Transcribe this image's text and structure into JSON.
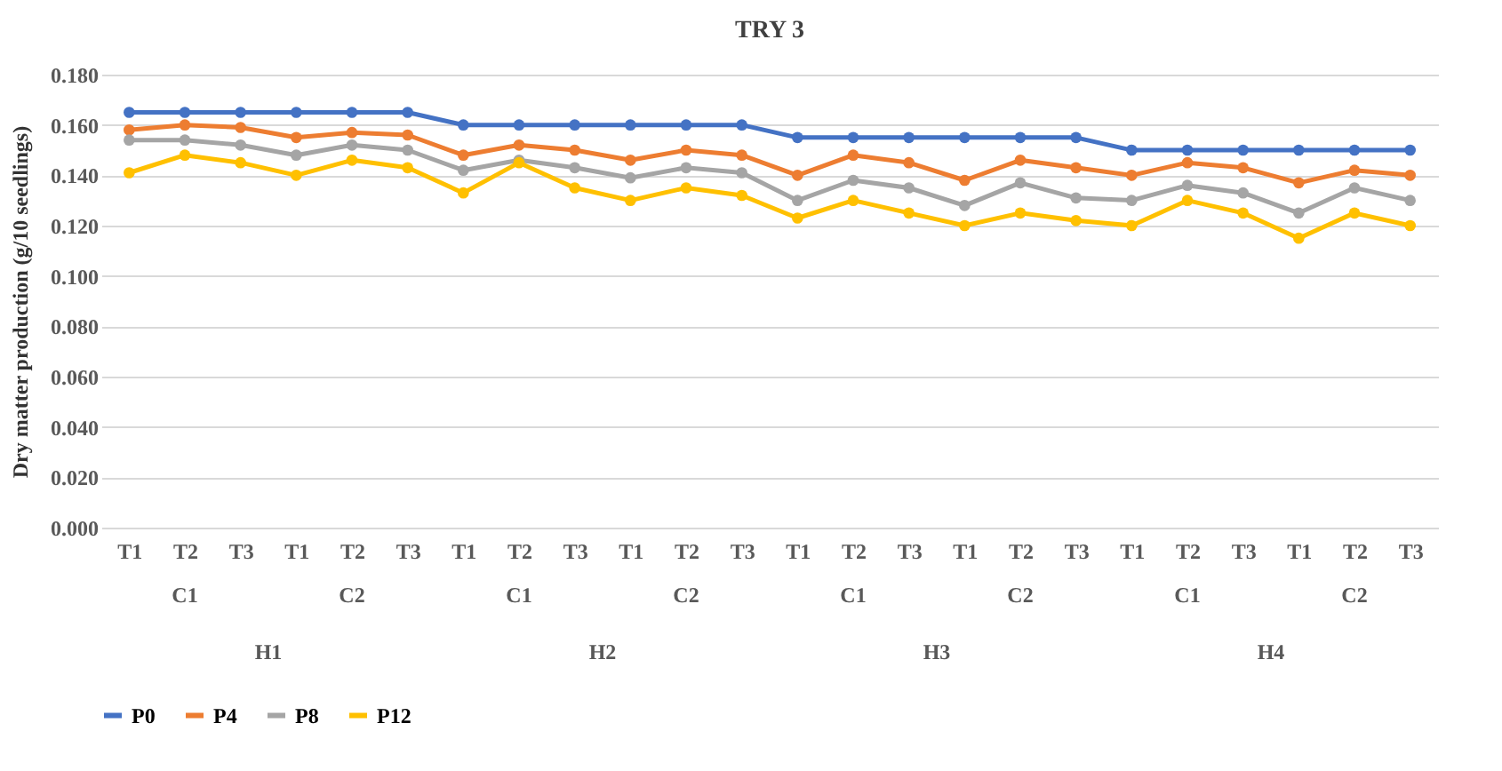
{
  "chart_data": {
    "type": "line",
    "title": "TRY 3",
    "ylabel": "Dry matter production (g/10 seedlings)",
    "categories": [
      "T1",
      "T2",
      "T3",
      "T1",
      "T2",
      "T3",
      "T1",
      "T2",
      "T3",
      "T1",
      "T2",
      "T3",
      "T1",
      "T2",
      "T3",
      "T1",
      "T2",
      "T3",
      "T1",
      "T2",
      "T3",
      "T1",
      "T2",
      "T3"
    ],
    "annotations": [
      "C1",
      "C2",
      "C1",
      "C2",
      "C1",
      "C2",
      "C1",
      "C2",
      "H1",
      "H2",
      "H3",
      "H4"
    ],
    "series": [
      {
        "name": "P0",
        "color": "#4472c4",
        "values": [
          0.165,
          0.165,
          0.165,
          0.165,
          0.165,
          0.165,
          0.16,
          0.16,
          0.16,
          0.16,
          0.16,
          0.16,
          0.155,
          0.155,
          0.155,
          0.155,
          0.155,
          0.155,
          0.15,
          0.15,
          0.15,
          0.15,
          0.15,
          0.15
        ]
      },
      {
        "name": "P4",
        "color": "#ed7d31",
        "values": [
          0.158,
          0.16,
          0.159,
          0.155,
          0.157,
          0.156,
          0.148,
          0.152,
          0.15,
          0.146,
          0.15,
          0.148,
          0.14,
          0.148,
          0.145,
          0.138,
          0.146,
          0.143,
          0.14,
          0.145,
          0.143,
          0.137,
          0.142,
          0.14
        ]
      },
      {
        "name": "P8",
        "color": "#a5a5a5",
        "values": [
          0.154,
          0.154,
          0.152,
          0.148,
          0.152,
          0.15,
          0.142,
          0.146,
          0.143,
          0.139,
          0.143,
          0.141,
          0.13,
          0.138,
          0.135,
          0.128,
          0.137,
          0.131,
          0.13,
          0.136,
          0.133,
          0.125,
          0.135,
          0.13
        ]
      },
      {
        "name": "P12",
        "color": "#ffc000",
        "values": [
          0.141,
          0.148,
          0.145,
          0.14,
          0.146,
          0.143,
          0.133,
          0.145,
          0.135,
          0.13,
          0.135,
          0.132,
          0.123,
          0.13,
          0.125,
          0.12,
          0.125,
          0.122,
          0.12,
          0.13,
          0.125,
          0.115,
          0.125,
          0.12
        ]
      }
    ],
    "ylim": [
      0,
      0.18
    ],
    "yticks": [
      {
        "value": 0,
        "label": "0.000"
      },
      {
        "value": 0.02,
        "label": "0.020"
      },
      {
        "value": 0.04,
        "label": "0.040"
      },
      {
        "value": 0.06,
        "label": "0.060"
      },
      {
        "value": 0.08,
        "label": "0.080"
      },
      {
        "value": 0.1,
        "label": "0.100"
      },
      {
        "value": 0.12,
        "label": "0.120"
      },
      {
        "value": 0.14,
        "label": "0.140"
      },
      {
        "value": 0.16,
        "label": "0.160"
      },
      {
        "value": 0.18,
        "label": "0.180"
      }
    ],
    "grid": "y",
    "legend": "bottom",
    "marker": "circle",
    "line_style": "solid"
  }
}
